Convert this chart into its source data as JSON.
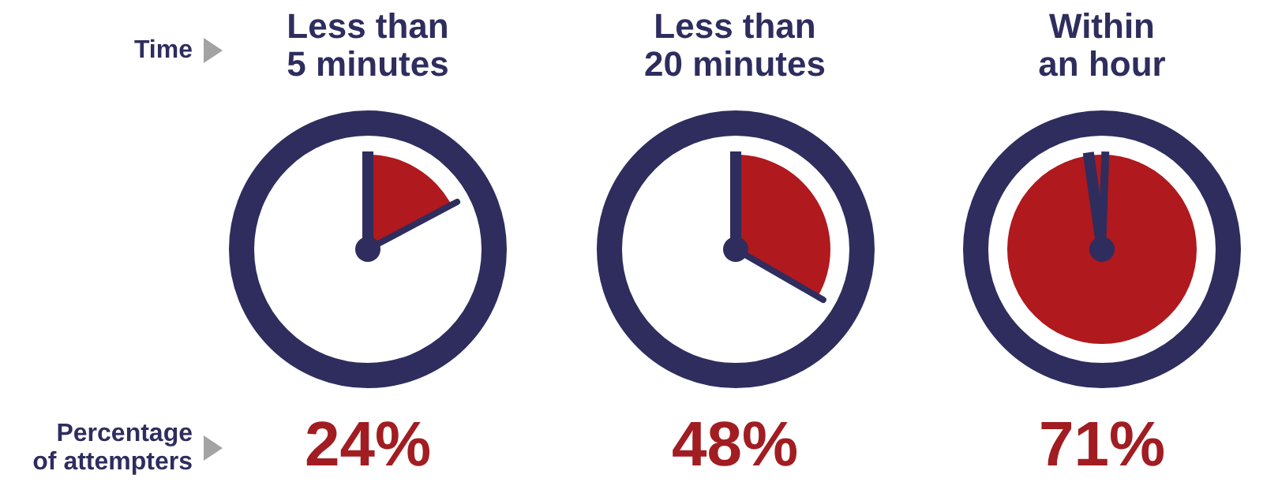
{
  "chart_data": {
    "type": "other",
    "categories": [
      "Less than 5 minutes",
      "Less than 20 minutes",
      "Within an hour"
    ],
    "values": [
      24,
      48,
      71
    ],
    "value_labels": [
      "24%",
      "48%",
      "71%"
    ],
    "color": "#a11d22",
    "annotations": [
      "Time",
      "Percentage of attempters"
    ]
  }
}
